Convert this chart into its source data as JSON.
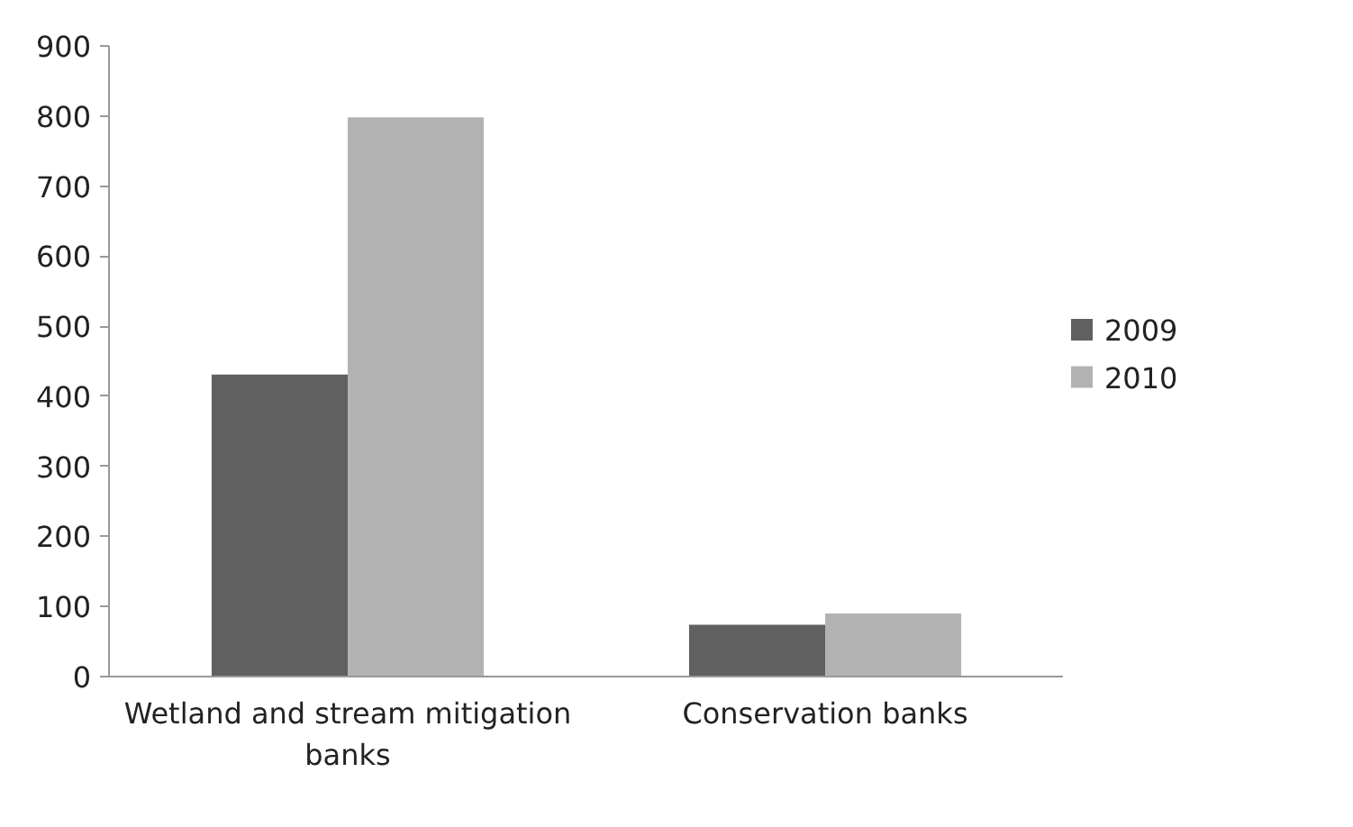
{
  "chart_data": {
    "type": "bar",
    "categories": [
      "Wetland and stream mitigation banks",
      "Conservation banks"
    ],
    "series": [
      {
        "name": "2009",
        "color": "#606060",
        "values": [
          431,
          74
        ]
      },
      {
        "name": "2010",
        "color": "#b2b2b2",
        "values": [
          798,
          90
        ]
      }
    ],
    "ylim": [
      0,
      900
    ],
    "yticks": [
      0,
      100,
      200,
      300,
      400,
      500,
      600,
      700,
      800,
      900
    ],
    "grid": false,
    "legend": "right"
  }
}
